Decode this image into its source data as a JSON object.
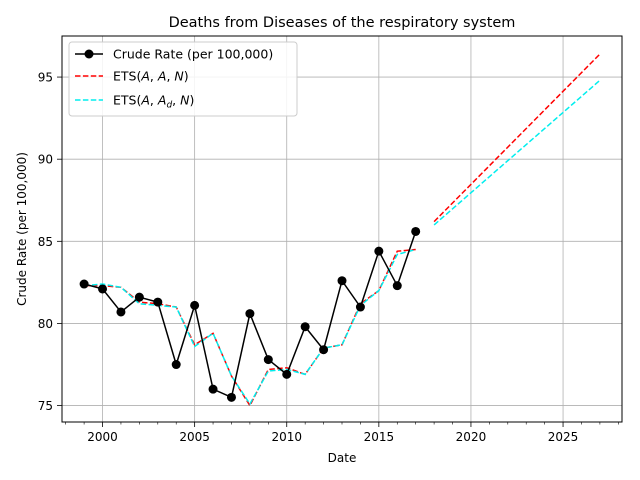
{
  "chart_data": {
    "type": "line",
    "title": "Deaths from Diseases of the respiratory system",
    "xlabel": "Date",
    "ylabel": "Crude Rate (per 100,000)",
    "xlim": [
      1997.8,
      2028.2
    ],
    "ylim": [
      74.0,
      97.5
    ],
    "xticks": [
      2000,
      2005,
      2010,
      2015,
      2020,
      2025
    ],
    "yticks": [
      75,
      80,
      85,
      90,
      95
    ],
    "grid": true,
    "legend_position": "top-left",
    "series": [
      {
        "name": "Crude Rate (per 100,000)",
        "color": "#000000",
        "style": "solid-marker",
        "x": [
          1999,
          2000,
          2001,
          2002,
          2003,
          2004,
          2005,
          2006,
          2007,
          2008,
          2009,
          2010,
          2011,
          2012,
          2013,
          2014,
          2015,
          2016,
          2017
        ],
        "y": [
          82.4,
          82.1,
          80.7,
          81.6,
          81.3,
          77.5,
          81.1,
          76.0,
          75.5,
          80.6,
          77.8,
          76.9,
          79.8,
          78.4,
          82.6,
          81.0,
          84.4,
          82.3,
          85.6
        ]
      },
      {
        "name": "ETS(A, A, N)",
        "name_parts": {
          "pre": "ETS(",
          "a1": "A",
          "sep1": ", ",
          "a2": "A",
          "sep2": ", ",
          "n": "N",
          "post": ")"
        },
        "color": "#ff0000",
        "style": "dashed",
        "x": [
          1999,
          2000,
          2001,
          2002,
          2003,
          2004,
          2005,
          2006,
          2007,
          2008,
          2009,
          2010,
          2011,
          2012,
          2013,
          2014,
          2015,
          2016,
          2017
        ],
        "y": [
          82.3,
          82.3,
          82.2,
          81.3,
          81.2,
          81.0,
          78.7,
          79.4,
          76.8,
          75.0,
          77.2,
          77.3,
          76.9,
          78.5,
          78.7,
          81.2,
          82.0,
          84.4,
          84.5
        ],
        "forecast_x": [
          2018,
          2027
        ],
        "forecast_y": [
          86.2,
          96.4
        ]
      },
      {
        "name": "ETS(A, Ad, N)",
        "name_parts": {
          "pre": "ETS(",
          "a1": "A",
          "sep1": ", ",
          "a2": "A",
          "sub": "d",
          "sep2": ", ",
          "n": "N",
          "post": ")"
        },
        "color": "#00eeee",
        "style": "dashed",
        "x": [
          1999,
          2000,
          2001,
          2002,
          2003,
          2004,
          2005,
          2006,
          2007,
          2008,
          2009,
          2010,
          2011,
          2012,
          2013,
          2014,
          2015,
          2016,
          2017
        ],
        "y": [
          82.3,
          82.4,
          82.2,
          81.2,
          81.1,
          81.0,
          78.6,
          79.4,
          76.8,
          75.1,
          77.1,
          77.2,
          76.9,
          78.5,
          78.7,
          81.1,
          82.0,
          84.2,
          84.5
        ],
        "forecast_x": [
          2018,
          2027
        ],
        "forecast_y": [
          86.0,
          94.8
        ]
      }
    ]
  }
}
